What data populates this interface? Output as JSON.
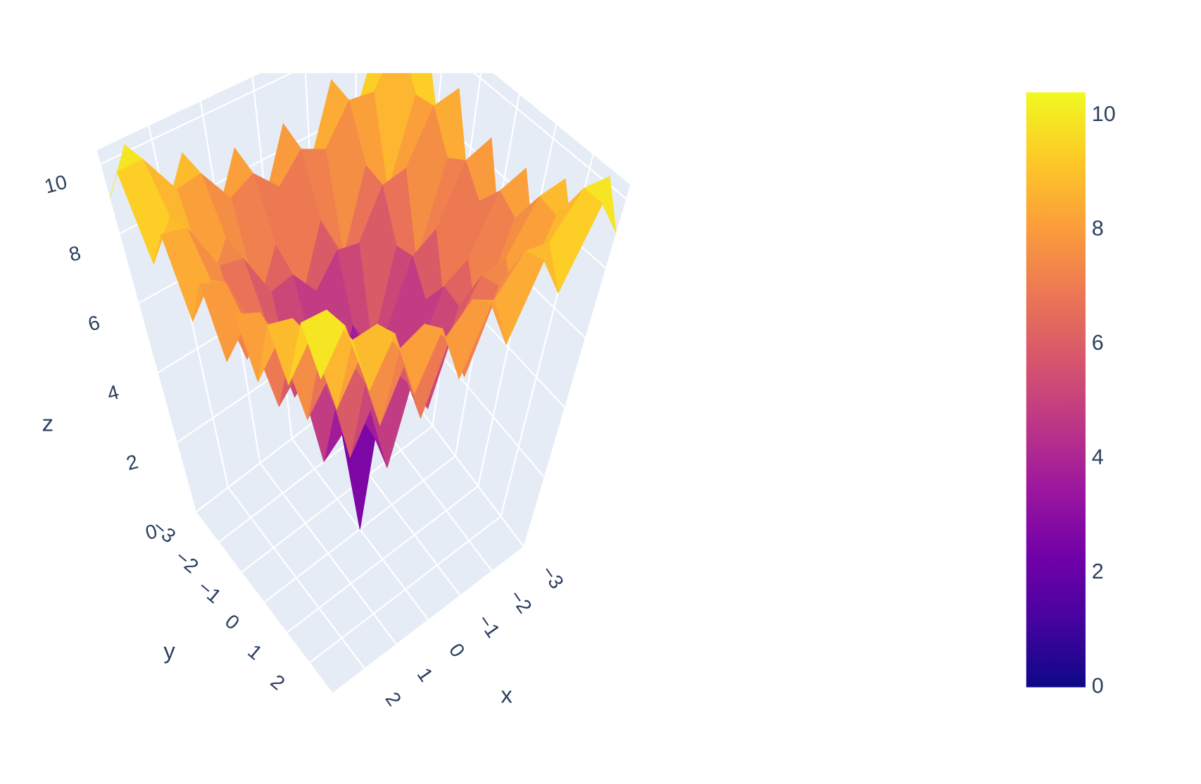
{
  "chart_data": {
    "type": "surface",
    "x_title": "x",
    "y_title": "y",
    "z_title": "z",
    "x": [
      -3,
      -2.5,
      -2,
      -1.5,
      -1,
      -0.5,
      0,
      0.5,
      1,
      1.5,
      2,
      2.5,
      3
    ],
    "y": [
      -3,
      -2.5,
      -2,
      -1.5,
      -1,
      -0.5,
      0,
      0.5,
      1,
      1.5,
      2,
      2.5,
      3
    ],
    "z": [
      [
        9.02,
        10.2,
        7.99,
        9.27,
        7.21,
        8.71,
        6.92,
        8.71,
        7.21,
        9.27,
        7.99,
        10.2,
        9.02
      ],
      [
        10.2,
        10.22,
        9.0,
        9.11,
        8.05,
        8.41,
        7.67,
        8.41,
        8.05,
        9.11,
        9.0,
        10.22,
        10.2
      ],
      [
        7.99,
        9.0,
        6.59,
        7.67,
        5.42,
        6.78,
        4.93,
        6.78,
        5.42,
        7.67,
        6.59,
        9.0,
        7.99
      ],
      [
        9.27,
        9.11,
        7.67,
        7.53,
        6.22,
        6.36,
        5.54,
        6.36,
        6.22,
        7.53,
        7.67,
        9.11,
        9.27
      ],
      [
        7.21,
        8.05,
        5.42,
        6.22,
        3.63,
        4.64,
        2.64,
        4.64,
        3.63,
        6.22,
        5.42,
        8.05,
        7.21
      ],
      [
        8.71,
        8.41,
        6.78,
        6.36,
        4.64,
        4.25,
        3.08,
        4.25,
        4.64,
        6.36,
        6.78,
        8.41,
        8.71
      ],
      [
        6.92,
        7.67,
        4.93,
        5.54,
        2.64,
        3.08,
        0,
        3.08,
        2.64,
        5.54,
        4.93,
        7.67,
        6.92
      ],
      [
        8.71,
        8.41,
        6.78,
        6.36,
        4.64,
        4.25,
        3.08,
        4.25,
        4.64,
        6.36,
        6.78,
        8.41,
        8.71
      ],
      [
        7.21,
        8.05,
        5.42,
        6.22,
        3.63,
        4.64,
        2.64,
        4.64,
        3.63,
        6.22,
        5.42,
        8.05,
        7.21
      ],
      [
        9.27,
        9.11,
        7.67,
        7.53,
        6.22,
        6.36,
        5.54,
        6.36,
        6.22,
        7.53,
        7.67,
        9.11,
        9.27
      ],
      [
        7.99,
        9.0,
        6.59,
        7.67,
        5.42,
        6.78,
        4.93,
        6.78,
        5.42,
        7.67,
        6.59,
        9.0,
        7.99
      ],
      [
        10.2,
        10.22,
        9.0,
        9.11,
        8.05,
        8.41,
        7.67,
        8.41,
        8.05,
        9.11,
        9.0,
        10.22,
        10.2
      ],
      [
        9.02,
        10.2,
        7.99,
        9.27,
        7.21,
        8.71,
        6.92,
        8.71,
        7.21,
        9.27,
        7.99,
        10.2,
        9.02
      ]
    ],
    "xlim": [
      -3,
      3
    ],
    "ylim": [
      -3,
      3
    ],
    "zlim": [
      0,
      10.4
    ],
    "xticks": [
      {
        "value": -3,
        "label": "−3"
      },
      {
        "value": -2,
        "label": "−2"
      },
      {
        "value": -1,
        "label": "−1"
      },
      0,
      1,
      2
    ],
    "yticks": [
      {
        "value": -3,
        "label": "−3"
      },
      {
        "value": -2,
        "label": "−2"
      },
      {
        "value": -1,
        "label": "−1"
      },
      0,
      1,
      2
    ],
    "zticks": [
      0,
      2,
      4,
      6,
      8,
      10
    ],
    "colorscale": [
      "#0d0887",
      "#46039f",
      "#7201a8",
      "#9c179e",
      "#bd3786",
      "#d8576b",
      "#ed7953",
      "#fb9f3a",
      "#fdca26",
      "#f0f921"
    ],
    "colorbar": {
      "range": [
        0,
        10.4
      ],
      "ticks": [
        0,
        2,
        4,
        6,
        8,
        10
      ]
    }
  }
}
